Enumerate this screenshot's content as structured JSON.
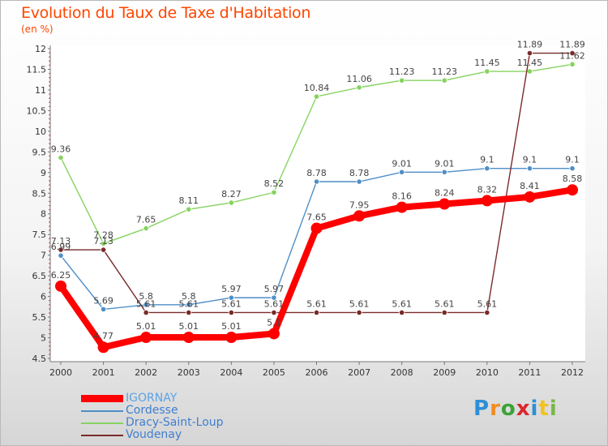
{
  "title": "Evolution du Taux de Taxe d'Habitation",
  "subtitle": "(en %)",
  "logo": {
    "text": "Proxiti",
    "colors": [
      "#2e8fd6",
      "#f28c1e",
      "#3aa335",
      "#d8272d",
      "#2e8fd6",
      "#f2c21e",
      "#7ab648"
    ]
  },
  "chart_data": {
    "type": "line",
    "x": [
      "2000",
      "2001",
      "2002",
      "2003",
      "2004",
      "2005",
      "2006",
      "2007",
      "2008",
      "2009",
      "2010",
      "2011",
      "2012"
    ],
    "ylim": [
      4.5,
      12
    ],
    "yticks": [
      "4.5",
      "5",
      "5.5",
      "6",
      "6.5",
      "7",
      "7.5",
      "8",
      "8.5",
      "9",
      "9.5",
      "10",
      "10.5",
      "11",
      "11.5",
      "12"
    ],
    "series": [
      {
        "name": "IGORNAY",
        "color": "#ff0000",
        "values": [
          6.25,
          4.77,
          5.01,
          5.01,
          5.01,
          5.1,
          7.65,
          7.95,
          8.16,
          8.24,
          8.32,
          8.41,
          8.58
        ],
        "labels": [
          "6.25",
          "4.77",
          "5.01",
          "5.01",
          "5.01",
          "5.1",
          "7.65",
          "7.95",
          "8.16",
          "8.24",
          "8.32",
          "8.41",
          "8.58"
        ]
      },
      {
        "name": "Cordesse",
        "color": "#4f8fc7",
        "values": [
          6.99,
          5.69,
          5.8,
          5.8,
          5.97,
          5.97,
          8.78,
          8.78,
          9.01,
          9.01,
          9.1,
          9.1,
          9.1
        ],
        "labels": [
          "6.99",
          "5.69",
          "5.8",
          "5.8",
          "5.97",
          "5.97",
          "8.78",
          "8.78",
          "9.01",
          "9.01",
          "9.1",
          "9.1",
          "9.1"
        ]
      },
      {
        "name": "Dracy-Saint-Loup",
        "color": "#86d35f",
        "values": [
          9.36,
          7.28,
          7.65,
          8.11,
          8.27,
          8.52,
          10.84,
          11.06,
          11.23,
          11.23,
          11.45,
          11.45,
          11.62
        ],
        "labels": [
          "9.36",
          "7.28",
          "7.65",
          "8.11",
          "8.27",
          "8.52",
          "10.84",
          "11.06",
          "11.23",
          "11.23",
          "11.45",
          "11.45",
          "11.62"
        ]
      },
      {
        "name": "Voudenay",
        "color": "#7a2a2a",
        "values": [
          7.13,
          7.13,
          5.61,
          5.61,
          5.61,
          5.61,
          5.61,
          5.61,
          5.61,
          5.61,
          5.61,
          11.89,
          11.89
        ],
        "labels": [
          "7.13",
          "7.13",
          "5.61",
          "5.61",
          "5.61",
          "5.61",
          "5.61",
          "5.61",
          "5.61",
          "5.61",
          "5.61",
          "11.89",
          "11.89"
        ]
      }
    ],
    "legend": "bottom-left",
    "grid": false
  }
}
